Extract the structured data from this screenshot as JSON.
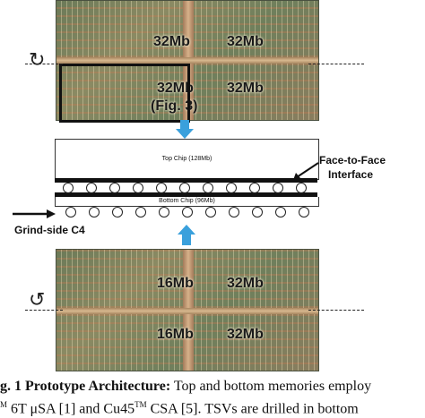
{
  "top_die": {
    "labels": [
      "32Mb",
      "32Mb",
      "32Mb",
      "(Fig. 3)",
      "32Mb"
    ]
  },
  "stack": {
    "top_chip": "Top Chip (128Mb)",
    "bottom_chip": "Bottom Chip (96Mb)",
    "face_to_face_line1": "Face-to-Face",
    "face_to_face_line2": "Interface",
    "grind_side": "Grind-side C4"
  },
  "bottom_die": {
    "labels": [
      "16Mb",
      "32Mb",
      "16Mb",
      "32Mb"
    ]
  },
  "caption": {
    "line1_bold": "g. 1 Prototype Architecture:",
    "line1_rest": " Top and bottom memories employ",
    "line2_a": "M",
    "line2_b": " 6T μSA [1] and Cu45",
    "line2_tm": "TM",
    "line2_c": " CSA [5]. TSVs are drilled in bottom"
  },
  "colors": {
    "arrow": "#3aa0dc",
    "die_base": "#7a8060"
  }
}
